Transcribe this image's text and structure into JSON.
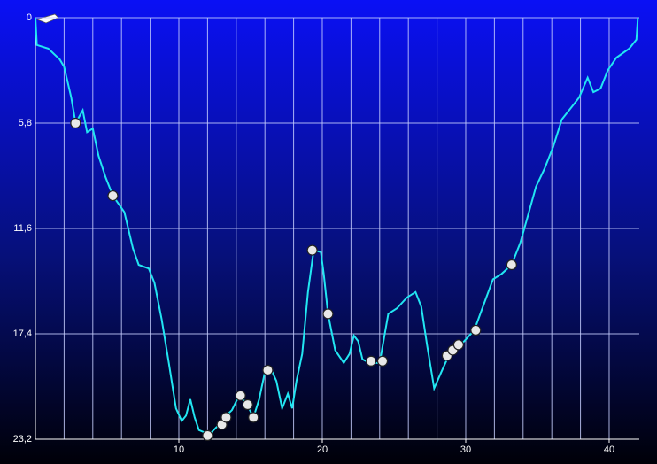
{
  "chart_data": {
    "type": "line",
    "x": [
      0,
      0.1,
      0.9,
      1.7,
      2.0,
      2.5,
      2.8,
      3.3,
      3.6,
      4.0,
      4.4,
      4.9,
      5.4,
      6.2,
      6.8,
      7.2,
      7.9,
      8.3,
      8.8,
      9.3,
      9.8,
      10.2,
      10.5,
      10.8,
      11.1,
      11.4,
      12.0,
      12.3,
      12.8,
      13.3,
      13.7,
      14.2,
      14.7,
      15.2,
      15.6,
      16.0,
      16.4,
      16.8,
      17.2,
      17.6,
      17.9,
      18.2,
      18.6,
      19.0,
      19.4,
      19.9,
      20.1,
      20.4,
      20.9,
      21.5,
      21.9,
      22.2,
      22.5,
      22.8,
      23.3,
      24.0,
      24.6,
      25.2,
      25.9,
      26.5,
      26.9,
      27.3,
      27.8,
      28.3,
      28.7,
      29.3,
      29.9,
      30.6,
      31.2,
      31.9,
      32.5,
      33.2,
      33.8,
      34.3,
      34.9,
      35.5,
      36.1,
      36.7,
      37.5,
      37.9,
      38.5,
      38.9,
      39.4,
      39.9,
      40.5,
      41.4,
      41.9,
      42.0
    ],
    "series": [
      {
        "color": "#22e6f2",
        "values": [
          0,
          1.5,
          1.7,
          2.3,
          2.7,
          4.4,
          5.8,
          5.1,
          6.3,
          6.1,
          7.6,
          8.8,
          9.8,
          10.7,
          12.7,
          13.6,
          13.8,
          14.6,
          16.6,
          19.0,
          21.5,
          22.2,
          21.9,
          21.0,
          22.0,
          22.7,
          22.9,
          22.8,
          22.4,
          21.9,
          21.6,
          20.8,
          21.2,
          22.0,
          21.0,
          19.5,
          19.3,
          20.0,
          21.5,
          20.7,
          21.5,
          20.0,
          18.5,
          15.1,
          12.8,
          12.9,
          14.1,
          16.3,
          18.3,
          19.0,
          18.5,
          17.5,
          17.8,
          18.8,
          19.0,
          19.0,
          16.3,
          16.0,
          15.4,
          15.1,
          15.9,
          18.0,
          20.4,
          19.5,
          18.8,
          18.3,
          17.8,
          17.2,
          15.9,
          14.4,
          14.1,
          13.6,
          12.4,
          11.0,
          9.3,
          8.3,
          7.1,
          5.6,
          4.8,
          4.4,
          3.3,
          4.1,
          3.9,
          2.9,
          2.2,
          1.7,
          1.2,
          0
        ]
      }
    ],
    "events": {
      "x": [
        2.8,
        5.4,
        12.0,
        13.0,
        13.3,
        14.3,
        14.8,
        15.2,
        16.2,
        19.3,
        20.4,
        23.4,
        24.2,
        28.7,
        29.1,
        29.5,
        30.7,
        33.2
      ],
      "y": [
        5.8,
        9.8,
        23.0,
        22.4,
        22.0,
        20.8,
        21.3,
        22.0,
        19.4,
        12.8,
        16.3,
        18.9,
        18.9,
        18.6,
        18.3,
        18.0,
        17.2,
        13.6
      ]
    },
    "xlim": [
      0,
      42.1
    ],
    "ylim": [
      23.2,
      0
    ],
    "inverted_y": true,
    "xticks": [
      10,
      20,
      30,
      40
    ],
    "xgrid": [
      2,
      4,
      6,
      8,
      10,
      12,
      14,
      16,
      18,
      20,
      22,
      24,
      26,
      28,
      30,
      32,
      34,
      36,
      38,
      40
    ],
    "yticks": [
      0,
      {
        "value": 5.8,
        "label": "5,8"
      },
      {
        "value": 11.6,
        "label": "11,6"
      },
      {
        "value": 17.4,
        "label": "17,4"
      },
      {
        "value": 23.2,
        "label": "23,2"
      }
    ],
    "grid": true
  }
}
